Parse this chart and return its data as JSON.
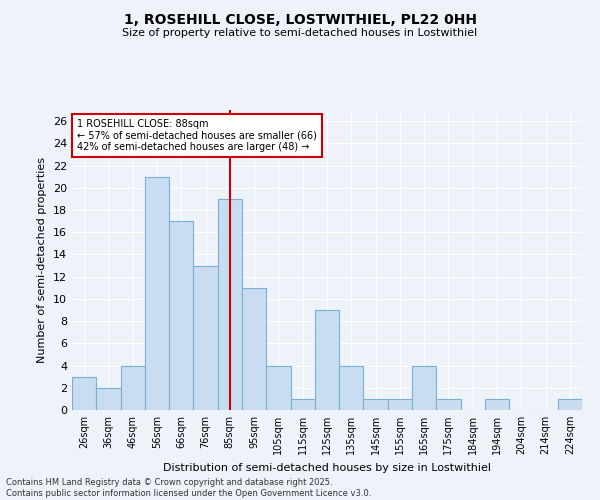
{
  "title1": "1, ROSEHILL CLOSE, LOSTWITHIEL, PL22 0HH",
  "title2": "Size of property relative to semi-detached houses in Lostwithiel",
  "xlabel": "Distribution of semi-detached houses by size in Lostwithiel",
  "ylabel": "Number of semi-detached properties",
  "categories": [
    "26sqm",
    "36sqm",
    "46sqm",
    "56sqm",
    "66sqm",
    "76sqm",
    "85sqm",
    "95sqm",
    "105sqm",
    "115sqm",
    "125sqm",
    "135sqm",
    "145sqm",
    "155sqm",
    "165sqm",
    "175sqm",
    "184sqm",
    "194sqm",
    "204sqm",
    "214sqm",
    "224sqm"
  ],
  "values": [
    3,
    2,
    4,
    21,
    17,
    13,
    19,
    11,
    4,
    1,
    9,
    4,
    1,
    1,
    4,
    1,
    0,
    1,
    0,
    0,
    1
  ],
  "bar_color": "#c8ddf2",
  "bar_edge_color": "#7bafd4",
  "vline_x_idx": 6,
  "vline_color": "#cc0000",
  "annotation_title": "1 ROSEHILL CLOSE: 88sqm",
  "annotation_line1": "← 57% of semi-detached houses are smaller (66)",
  "annotation_line2": "42% of semi-detached houses are larger (48) →",
  "annotation_box_color": "#ffffff",
  "annotation_box_edge": "#cc0000",
  "ylim": [
    0,
    27
  ],
  "yticks": [
    0,
    2,
    4,
    6,
    8,
    10,
    12,
    14,
    16,
    18,
    20,
    22,
    24,
    26
  ],
  "background_color": "#eef2f9",
  "footnote1": "Contains HM Land Registry data © Crown copyright and database right 2025.",
  "footnote2": "Contains public sector information licensed under the Open Government Licence v3.0."
}
